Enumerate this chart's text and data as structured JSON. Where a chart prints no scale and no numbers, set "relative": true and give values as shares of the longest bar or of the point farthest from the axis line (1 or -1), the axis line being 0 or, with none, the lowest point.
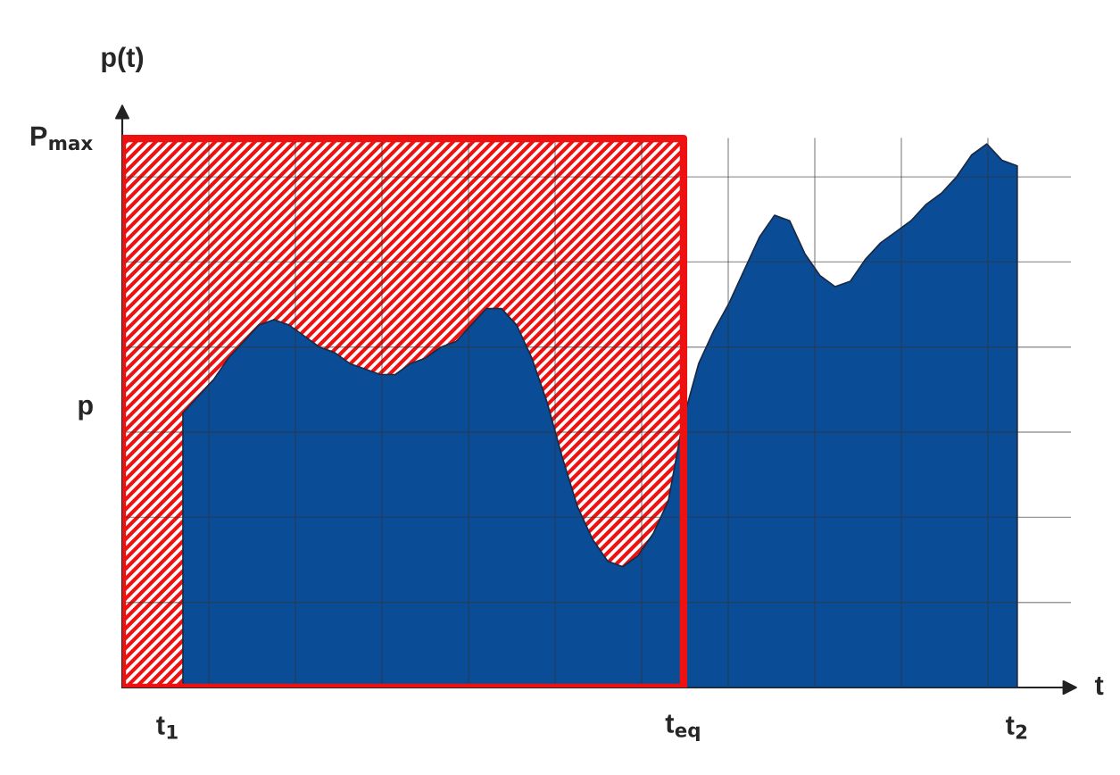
{
  "chart_data": {
    "type": "area",
    "relative": true,
    "xlabel": "t",
    "ylabel": "p(t)",
    "grid": true,
    "annotations": [
      "P$_{max}$",
      "p"
    ],
    "categories": [
      null,
      null,
      null,
      "t$_{1}$",
      null,
      null,
      null,
      null,
      null,
      null,
      null,
      null,
      null,
      null,
      null,
      null,
      null,
      null,
      null,
      null,
      null,
      null,
      null,
      null,
      null,
      null,
      null,
      null,
      null,
      null,
      null,
      null,
      null,
      null,
      null,
      null,
      null,
      "t$_{eq}$",
      null,
      null,
      null,
      null,
      null,
      null,
      null,
      null,
      null,
      null,
      null,
      null,
      null,
      null,
      null,
      null,
      null,
      null,
      null,
      null,
      null,
      "t$_{2}$"
    ],
    "series": [
      {
        "color": "#ee1111",
        "line_style": "solid",
        "values": [
          1,
          1,
          1,
          1,
          1,
          1,
          1,
          1,
          1,
          1,
          1,
          1,
          1,
          1,
          1,
          1,
          1,
          1,
          1,
          1,
          1,
          1,
          1,
          1,
          1,
          1,
          1,
          1,
          1,
          1,
          1,
          1,
          1,
          1,
          1,
          1,
          1,
          1,
          null,
          null,
          null,
          null,
          null,
          null,
          null,
          null,
          null,
          null,
          null,
          null,
          null,
          null,
          null,
          null,
          null,
          null,
          null,
          null,
          null,
          null
        ]
      },
      {
        "color": "#0b4c97",
        "values": [
          null,
          null,
          null,
          null,
          0.5,
          0.53,
          0.56,
          0.6,
          0.63,
          0.66,
          0.67,
          0.66,
          0.64,
          0.62,
          0.61,
          0.59,
          0.58,
          0.57,
          0.57,
          0.59,
          0.6,
          0.62,
          0.63,
          0.66,
          0.69,
          0.69,
          0.66,
          0.6,
          0.52,
          0.42,
          0.33,
          0.27,
          0.23,
          0.22,
          0.24,
          0.28,
          0.34,
          0.49,
          0.59,
          0.65,
          0.7,
          0.76,
          0.82,
          0.86,
          0.85,
          0.79,
          0.75,
          0.73,
          0.74,
          0.78,
          0.81,
          0.83,
          0.85,
          0.88,
          0.9,
          0.93,
          0.97,
          0.99,
          0.96,
          0.95
        ]
      }
    ]
  }
}
